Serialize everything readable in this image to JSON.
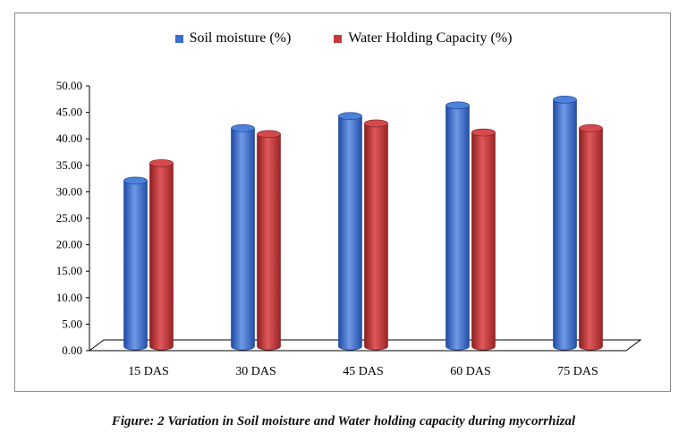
{
  "chart_data": {
    "type": "bar",
    "categories": [
      "15 DAS",
      "30 DAS",
      "45 DAS",
      "60 DAS",
      "75 DAS"
    ],
    "series": [
      {
        "name": "Soil moisture (%)",
        "values": [
          31.5,
          41.4,
          43.7,
          45.7,
          46.8
        ],
        "color": "#3b6ecf"
      },
      {
        "name": "Water Holding Capacity (%)",
        "values": [
          34.8,
          40.3,
          42.3,
          40.6,
          41.4
        ],
        "color": "#c8383a"
      }
    ],
    "y_ticks": [
      "0.00",
      "5.00",
      "10.00",
      "15.00",
      "20.00",
      "25.00",
      "30.00",
      "35.00",
      "40.00",
      "45.00",
      "50.00"
    ],
    "ylim": [
      0,
      50
    ],
    "legend_position": "top",
    "grid": false,
    "caption": "Figure: 2 Variation in Soil moisture and Water holding capacity during mycorrhizal"
  }
}
